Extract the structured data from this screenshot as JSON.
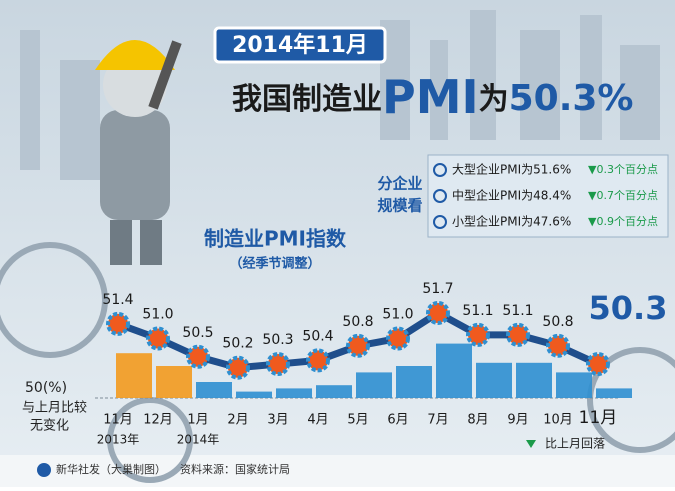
{
  "header": "2014年11月",
  "title": [
    "我国制造业",
    "PMI",
    "为",
    "50.3%"
  ],
  "breakdown": {
    "heading": [
      "分企业",
      "规模看"
    ],
    "items": [
      {
        "text": "大型企业PMI为51.6%",
        "change": "▼0.3个百分点"
      },
      {
        "text": "中型企业PMI为48.4%",
        "change": "▼0.7个百分点"
      },
      {
        "text": "小型企业PMI为47.6%",
        "change": "▼0.9个百分点"
      }
    ]
  },
  "chart_data": {
    "type": "line",
    "title": "制造业PMI指数",
    "subtitle": "（经季节调整）",
    "categories": [
      "11月",
      "12月",
      "1月",
      "2月",
      "3月",
      "4月",
      "5月",
      "6月",
      "7月",
      "8月",
      "9月",
      "10月",
      "11月"
    ],
    "category_years": [
      "2013年",
      null,
      "2014年",
      null,
      null,
      null,
      null,
      null,
      null,
      null,
      null,
      null,
      null
    ],
    "values": [
      51.4,
      51.0,
      50.5,
      50.2,
      50.3,
      50.4,
      50.8,
      51.0,
      51.7,
      51.1,
      51.1,
      50.8,
      50.3
    ],
    "value_labels": [
      "51.4",
      "51.0",
      "50.5",
      "50.2",
      "50.3",
      "50.4",
      "50.8",
      "51.0",
      "51.7",
      "51.1",
      "51.1",
      "50.8",
      "50.3"
    ],
    "color": "#1f4e8c",
    "bar_colors": [
      "#f39a1e",
      "#f39a1e",
      "#2f8fd0",
      "#2f8fd0",
      "#2f8fd0",
      "#2f8fd0",
      "#2f8fd0",
      "#2f8fd0",
      "#2f8fd0",
      "#2f8fd0",
      "#2f8fd0",
      "#2f8fd0",
      "#2f8fd0"
    ],
    "ylim": [
      50,
      52
    ],
    "yticks": [
      {
        "value": 50,
        "label": "50(%)"
      }
    ],
    "baseline_note": [
      "与上月比较",
      "无变化"
    ],
    "legend": "比上月回落"
  },
  "footer": {
    "credit": "新华社发（大巢制图）",
    "source": "资料来源：国家统计局"
  }
}
